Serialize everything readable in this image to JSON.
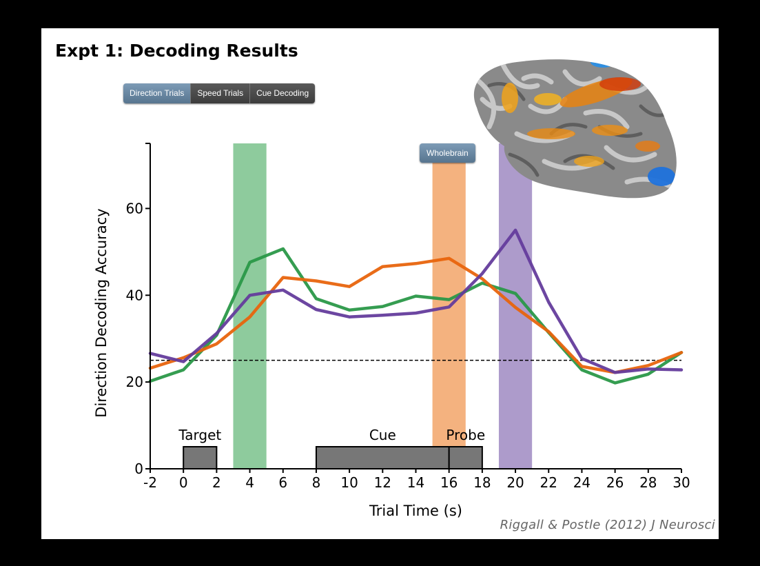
{
  "title": "Expt 1: Decoding Results",
  "tabs": [
    {
      "label": "Direction Trials",
      "active": true
    },
    {
      "label": "Speed Trials",
      "active": false
    },
    {
      "label": "Cue Decoding",
      "active": false
    }
  ],
  "wholebrain_button": "Wholebrain",
  "citation": "Riggall & Postle (2012) J Neurosci",
  "colors": {
    "green": "#2a9848",
    "orange": "#e8640d",
    "purple": "#643c9c",
    "accent": "#6a89a5"
  },
  "chart_data": {
    "type": "line",
    "xlabel": "Trial Time (s)",
    "ylabel": "Direction Decoding Accuracy",
    "xlim": [
      -2,
      30
    ],
    "ylim": [
      0,
      75
    ],
    "xticks": [
      -2,
      0,
      2,
      4,
      6,
      8,
      10,
      12,
      14,
      16,
      18,
      20,
      22,
      24,
      26,
      28,
      30
    ],
    "yticks": [
      0,
      20,
      40,
      60
    ],
    "chance_level": 25,
    "series": [
      {
        "color": "#2a9848",
        "x": [
          -2,
          0,
          2,
          4,
          6,
          8,
          10,
          12,
          14,
          16,
          18,
          20,
          22,
          24,
          26,
          28,
          30
        ],
        "values": [
          20.2,
          22.8,
          30.8,
          47.6,
          50.7,
          39.2,
          36.6,
          37.4,
          39.8,
          39.0,
          42.8,
          40.4,
          31.4,
          22.8,
          19.8,
          21.8,
          26.8
        ]
      },
      {
        "color": "#e8640d",
        "x": [
          -2,
          0,
          2,
          4,
          6,
          8,
          10,
          12,
          14,
          16,
          18,
          20,
          22,
          24,
          26,
          28,
          30
        ],
        "values": [
          23.2,
          25.6,
          28.8,
          35.0,
          44.1,
          43.3,
          42.0,
          46.6,
          47.3,
          48.5,
          43.8,
          37.2,
          31.6,
          23.6,
          22.2,
          23.8,
          26.8
        ]
      },
      {
        "color": "#643c9c",
        "x": [
          -2,
          0,
          2,
          4,
          6,
          8,
          10,
          12,
          14,
          16,
          18,
          20,
          22,
          24,
          26,
          28,
          30
        ],
        "values": [
          26.6,
          24.7,
          31.2,
          40.0,
          41.2,
          36.7,
          35.0,
          35.4,
          35.9,
          37.3,
          45.0,
          55.0,
          38.4,
          25.4,
          22.2,
          23.0,
          22.8
        ]
      }
    ],
    "shaded_windows": [
      {
        "x0": 3,
        "x1": 5,
        "color": "#8ecb9d"
      },
      {
        "x0": 15,
        "x1": 17,
        "color": "#f4b27f"
      },
      {
        "x0": 19,
        "x1": 21,
        "color": "#ad9bcb"
      }
    ],
    "events": [
      {
        "label": "Target",
        "x0": 0,
        "x1": 2
      },
      {
        "label": "Cue",
        "x0": 8,
        "x1": 16
      },
      {
        "label": "Probe",
        "x0": 16,
        "x1": 18
      }
    ]
  }
}
